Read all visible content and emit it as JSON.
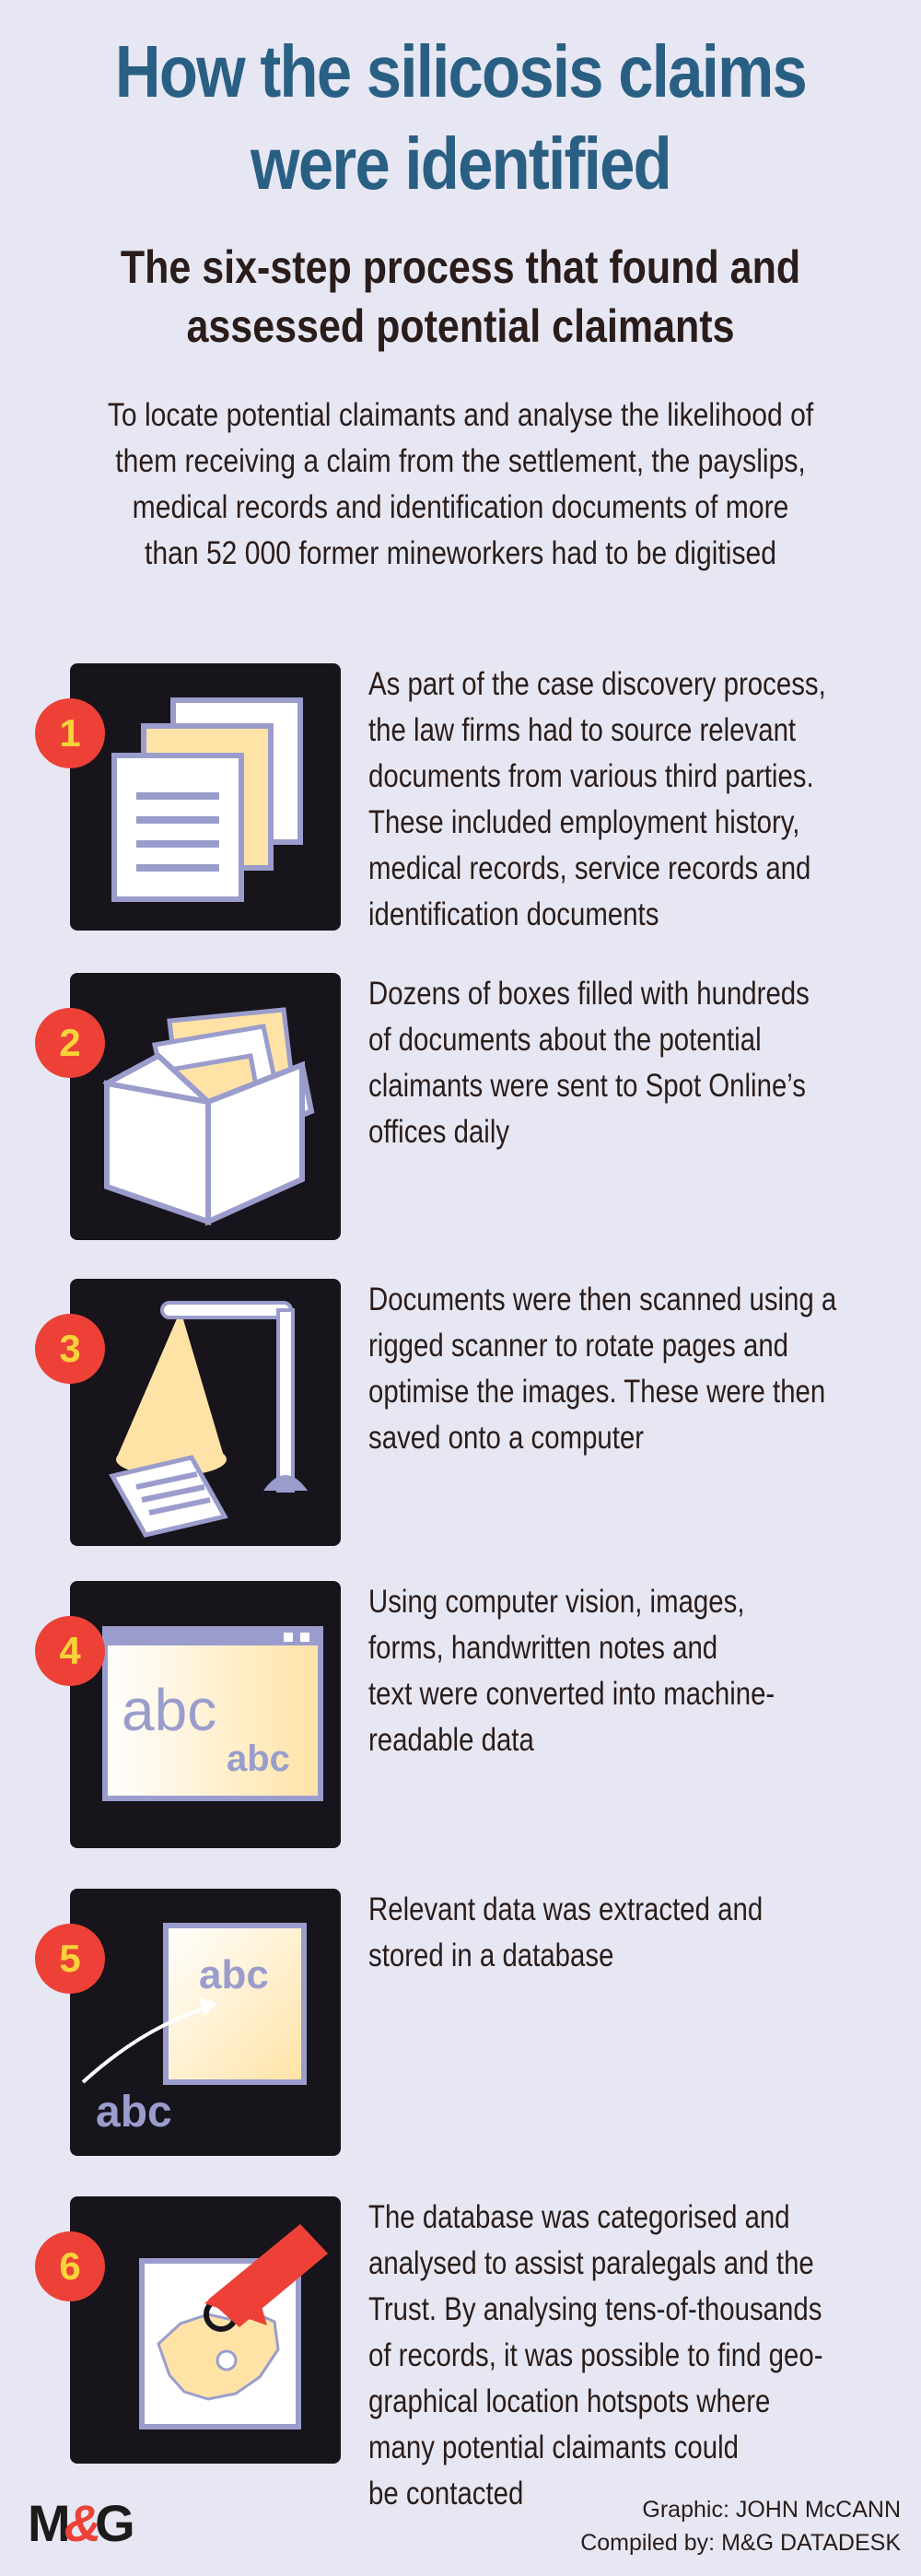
{
  "header": {
    "title_lines": [
      "How the silicosis claims",
      "were identified"
    ],
    "subtitle_lines": [
      "The six-step process that found and",
      "assessed potential claimants"
    ],
    "intro_lines": [
      "To locate potential claimants and analyse the likelihood of",
      "them receiving a claim from the settlement, the payslips,",
      "medical records and identification documents of more",
      "than 52 000 former mineworkers had to be digitised"
    ]
  },
  "steps": [
    {
      "number": "1",
      "icon": "documents-icon",
      "lines": [
        "As part of the case discovery process,",
        "the law firms had to source relevant",
        "documents from various third parties.",
        "These included employment history,",
        "medical records, service records and",
        "identification documents"
      ]
    },
    {
      "number": "2",
      "icon": "box-icon",
      "lines": [
        "Dozens of boxes filled with hundreds",
        "of documents about the potential",
        "claimants were sent to Spot Online’s",
        "offices daily"
      ]
    },
    {
      "number": "3",
      "icon": "scanner-lamp-icon",
      "lines": [
        "Documents were then scanned using a",
        "rigged scanner to rotate pages and",
        "optimise the images. These were then",
        "saved onto a computer"
      ]
    },
    {
      "number": "4",
      "icon": "text-window-icon",
      "icon_text_large": "abc",
      "icon_text_small": "abc",
      "lines": [
        "Using computer vision, images,",
        "forms, handwritten notes and",
        "text were converted into machine-",
        "readable data"
      ]
    },
    {
      "number": "5",
      "icon": "extract-data-icon",
      "icon_text_card": "abc",
      "icon_text_outside": "abc",
      "lines": [
        "Relevant data was extracted and",
        "stored in a database"
      ]
    },
    {
      "number": "6",
      "icon": "map-pointer-icon",
      "lines": [
        "The database was categorised and",
        "analysed to assist paralegals and the",
        "Trust. By analysing tens-of-thousands",
        "of records, it was possible to find geo-",
        "graphical location hotspots where",
        "many potential claimants could",
        "be contacted"
      ]
    }
  ],
  "footer": {
    "logo_left": "M",
    "logo_amp": "&",
    "logo_right": "G",
    "graphic_credit": "Graphic: JOHN McCANN",
    "compiled_credit": "Compiled by: M&G DATADESK"
  },
  "colors": {
    "background": "#e6e7f3",
    "title": "#2a5f84",
    "tile": "#17141b",
    "badge": "#ed4138",
    "badge_number": "#f8d33a",
    "paper": "#ffe3a6",
    "outline": "#9a9dcc"
  }
}
